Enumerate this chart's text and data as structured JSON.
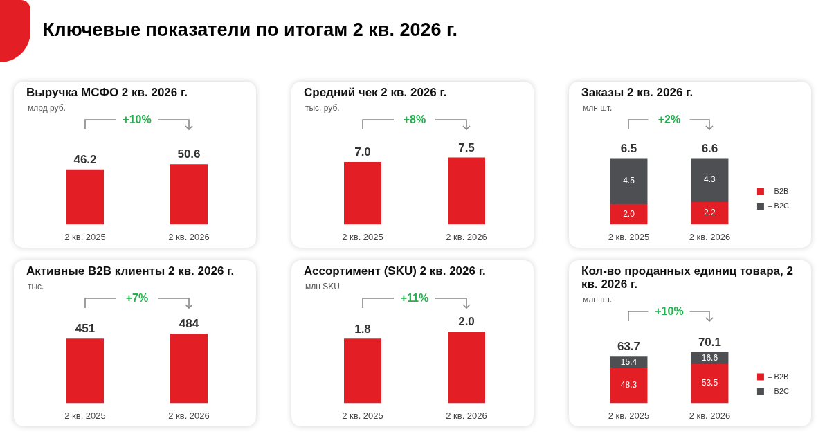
{
  "chart_data": [
    {
      "type": "other",
      "title": "Ключевые показатели по итогам 2 кв. 2026 г."
    },
    {
      "type": "bar",
      "title": "Выручка МСФО 2 кв. 2026 г.",
      "subtitle": "млрд руб.",
      "categories": [
        "2 кв. 2025",
        "2 кв. 2026"
      ],
      "values": [
        46.2,
        50.6
      ],
      "color": "#e31e24",
      "data_labels": true,
      "tick_labels": "x",
      "annotations": [
        "+10%"
      ]
    },
    {
      "type": "bar",
      "title": "Средний чек 2 кв. 2026 г.",
      "subtitle": "тыс. руб.",
      "categories": [
        "2 кв. 2025",
        "2 кв. 2026"
      ],
      "values": [
        7.0,
        7.5
      ],
      "value_labels": [
        "7.0",
        "7.5"
      ],
      "color": "#e31e24",
      "tick_labels": "x",
      "annotations": [
        "+8%"
      ]
    },
    {
      "type": "bar",
      "title": "Заказы 2 кв. 2026 г.",
      "subtitle": "млн шт.",
      "categories": [
        "2 кв. 2025",
        "2 кв. 2026"
      ],
      "stacked": true,
      "legend": "right",
      "tick_labels": "x",
      "totals": [
        "6.5",
        "6.6"
      ],
      "annotations": [
        "+2%"
      ],
      "series": [
        {
          "name": "– B2B",
          "color": "#e31e24",
          "values": [
            2.0,
            2.2
          ],
          "value_labels": [
            "2.0",
            "2.2"
          ]
        },
        {
          "name": "– B2C",
          "color": "#4d4f53",
          "values": [
            4.5,
            4.3
          ],
          "value_labels": [
            "4.5",
            "4.3"
          ]
        }
      ]
    },
    {
      "type": "bar",
      "title": "Активные B2B клиенты 2 кв. 2026 г.",
      "subtitle": "тыс.",
      "categories": [
        "2 кв. 2025",
        "2 кв. 2026"
      ],
      "values": [
        451,
        484
      ],
      "color": "#e31e24",
      "data_labels": true,
      "tick_labels": "x",
      "annotations": [
        "+7%"
      ]
    },
    {
      "type": "bar",
      "title": "Ассортимент (SKU) 2 кв. 2026 г.",
      "subtitle": "млн SKU",
      "categories": [
        "2 кв. 2025",
        "2 кв. 2026"
      ],
      "values": [
        1.8,
        2.0
      ],
      "value_labels": [
        "1.8",
        "2.0"
      ],
      "color": "#e31e24",
      "tick_labels": "x",
      "annotations": [
        "+11%"
      ]
    },
    {
      "type": "bar",
      "title": "Кол-во проданных единиц товара, 2 кв. 2026 г.",
      "subtitle": "млн шт.",
      "categories": [
        "2 кв. 2025",
        "2 кв. 2026"
      ],
      "stacked": true,
      "legend": "right",
      "tick_labels": "x",
      "data_labels": true,
      "totals": [
        "63.7",
        "70.1"
      ],
      "annotations": [
        "+10%"
      ],
      "series": [
        {
          "name": "– B2B",
          "color": "#e31e24",
          "values": [
            48.3,
            53.5
          ]
        },
        {
          "name": "– B2C",
          "color": "#4d4f53",
          "values": [
            15.4,
            16.6
          ]
        }
      ]
    }
  ]
}
